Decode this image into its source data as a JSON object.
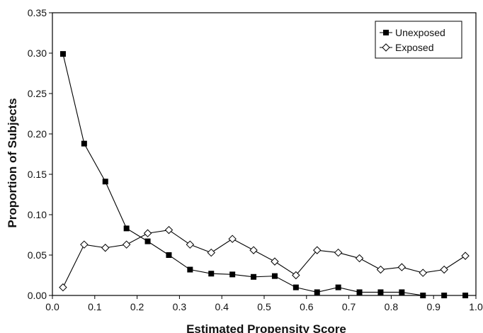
{
  "chart_data": {
    "type": "line",
    "title": "",
    "xlabel": "Estimated Propensity Score",
    "ylabel": "Proportion of Subjects",
    "xlim": [
      0.0,
      1.0
    ],
    "ylim": [
      0.0,
      0.35
    ],
    "x_ticks": [
      "0.0",
      "0.1",
      "0.2",
      "0.3",
      "0.4",
      "0.5",
      "0.6",
      "0.7",
      "0.8",
      "0.9",
      "1.0"
    ],
    "y_ticks": [
      "0.00",
      "0.05",
      "0.10",
      "0.15",
      "0.20",
      "0.25",
      "0.30",
      "0.35"
    ],
    "grid": false,
    "legend_position": "top-right",
    "x": [
      0.025,
      0.075,
      0.125,
      0.175,
      0.225,
      0.275,
      0.325,
      0.375,
      0.425,
      0.475,
      0.525,
      0.575,
      0.625,
      0.675,
      0.725,
      0.775,
      0.825,
      0.875,
      0.925,
      0.975
    ],
    "series": [
      {
        "name": "Unexposed",
        "marker": "filled-square",
        "color": "#000000",
        "values": [
          0.299,
          0.188,
          0.141,
          0.083,
          0.067,
          0.05,
          0.032,
          0.027,
          0.026,
          0.023,
          0.024,
          0.01,
          0.004,
          0.01,
          0.004,
          0.004,
          0.004,
          0.0,
          0.0,
          0.0
        ]
      },
      {
        "name": "Exposed",
        "marker": "open-diamond",
        "color": "#000000",
        "values": [
          0.01,
          0.063,
          0.059,
          0.063,
          0.077,
          0.081,
          0.063,
          0.053,
          0.07,
          0.056,
          0.042,
          0.025,
          0.056,
          0.053,
          0.046,
          0.032,
          0.035,
          0.028,
          0.032,
          0.049
        ]
      }
    ]
  }
}
